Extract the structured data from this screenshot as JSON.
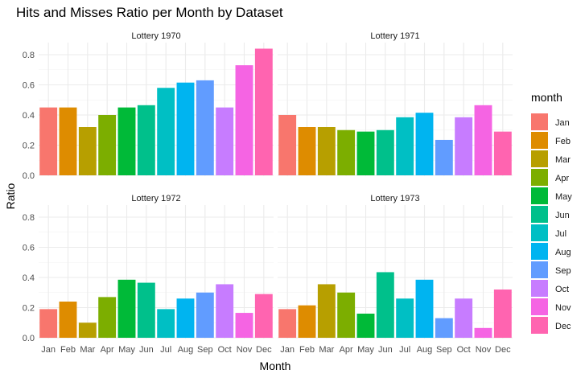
{
  "chart_data": {
    "type": "bar",
    "title": "Hits and Misses Ratio per Month by Dataset",
    "xlabel": "Month",
    "ylabel": "Ratio",
    "ylim": [
      0,
      0.88
    ],
    "yticks": [
      0.0,
      0.2,
      0.4,
      0.6,
      0.8
    ],
    "ytick_labels": [
      "0.0",
      "0.2",
      "0.4",
      "0.6",
      "0.8"
    ],
    "categories": [
      "Jan",
      "Feb",
      "Mar",
      "Apr",
      "May",
      "Jun",
      "Jul",
      "Aug",
      "Sep",
      "Oct",
      "Nov",
      "Dec"
    ],
    "legend": {
      "title": "month",
      "position": "right",
      "colors": [
        "#F8766D",
        "#DE8C00",
        "#B79F00",
        "#7CAE00",
        "#00BA38",
        "#00C08B",
        "#00BFC4",
        "#00B4F0",
        "#619CFF",
        "#C77CFF",
        "#F564E3",
        "#FF64B0"
      ]
    },
    "grid": true,
    "facets": [
      {
        "title": "Lottery 1970",
        "values": [
          0.45,
          0.45,
          0.32,
          0.4,
          0.45,
          0.465,
          0.58,
          0.615,
          0.63,
          0.45,
          0.73,
          0.84
        ]
      },
      {
        "title": "Lottery 1971",
        "values": [
          0.4,
          0.32,
          0.32,
          0.3,
          0.29,
          0.3,
          0.385,
          0.415,
          0.235,
          0.385,
          0.465,
          0.29
        ]
      },
      {
        "title": "Lottery 1972",
        "values": [
          0.19,
          0.24,
          0.1,
          0.27,
          0.385,
          0.365,
          0.19,
          0.26,
          0.3,
          0.355,
          0.165,
          0.29
        ]
      },
      {
        "title": "Lottery 1973",
        "values": [
          0.19,
          0.215,
          0.355,
          0.3,
          0.16,
          0.435,
          0.26,
          0.385,
          0.13,
          0.26,
          0.065,
          0.32
        ]
      }
    ]
  }
}
